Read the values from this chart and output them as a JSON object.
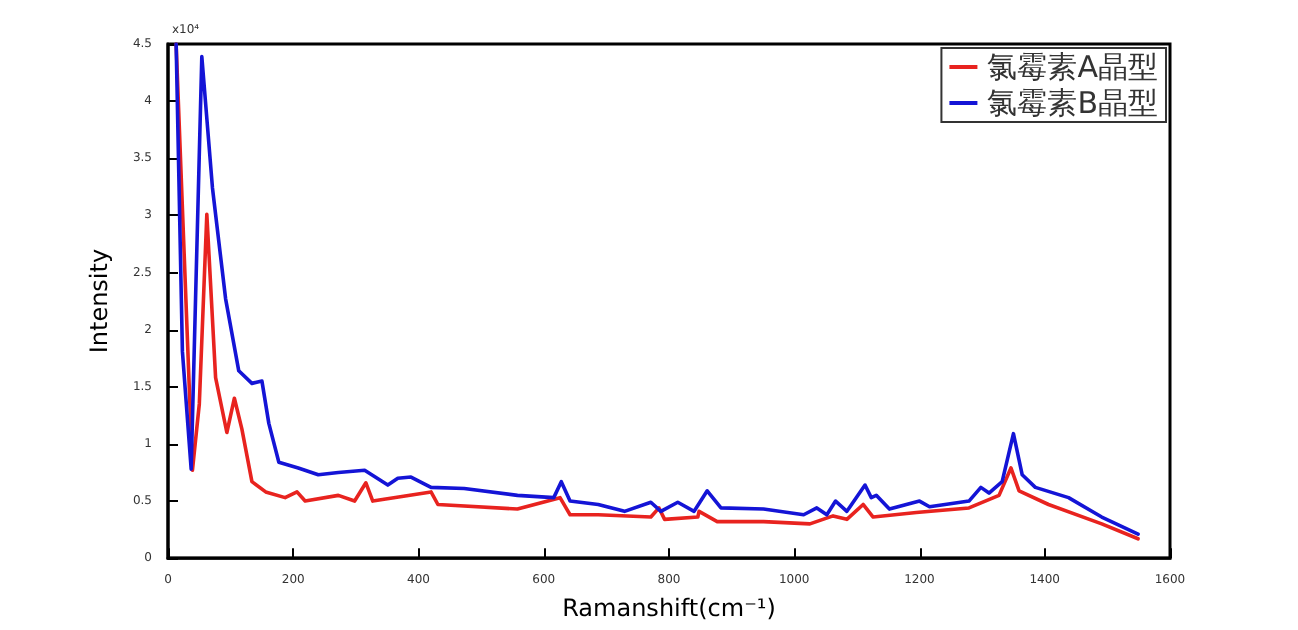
{
  "chart_data": {
    "type": "line",
    "xlabel": "Ramanshift(cm⁻¹)",
    "ylabel": "Intensity",
    "annotations": [
      "x10⁴"
    ],
    "xlim": [
      0,
      1600
    ],
    "xticks": [
      0,
      200,
      400,
      600,
      800,
      1000,
      1200,
      1400,
      1600
    ],
    "ylim": [
      0,
      4.5
    ],
    "yticks": [
      0,
      0.5,
      1,
      1.5,
      2,
      2.5,
      3,
      3.5,
      4,
      4.5
    ],
    "grid": false,
    "legend": "top right",
    "marker": "none",
    "line_style": "solid",
    "series": [
      {
        "name": "氯霉素A晶型",
        "color": "#e8231f",
        "x": [
          13,
          39,
          50,
          62,
          76,
          94,
          106,
          118,
          134,
          156,
          187,
          206,
          219,
          272,
          298,
          316,
          327,
          420,
          431,
          558,
          626,
          642,
          687,
          771,
          784,
          793,
          846,
          848,
          877,
          951,
          1025,
          1062,
          1084,
          1110,
          1126,
          1195,
          1279,
          1327,
          1346,
          1359,
          1406,
          1491,
          1549
        ],
        "values": [
          4.5,
          0.77,
          1.35,
          3.01,
          1.58,
          1.1,
          1.4,
          1.13,
          0.67,
          0.58,
          0.53,
          0.58,
          0.5,
          0.55,
          0.5,
          0.66,
          0.5,
          0.58,
          0.47,
          0.43,
          0.53,
          0.38,
          0.38,
          0.36,
          0.44,
          0.34,
          0.36,
          0.41,
          0.32,
          0.32,
          0.3,
          0.37,
          0.34,
          0.47,
          0.36,
          0.4,
          0.44,
          0.55,
          0.79,
          0.59,
          0.47,
          0.3,
          0.17
        ]
      },
      {
        "name": "氯霉素B晶型",
        "color": "#1414d6",
        "x": [
          13,
          23,
          37,
          44,
          54,
          71,
          92,
          113,
          134,
          150,
          161,
          177,
          208,
          240,
          272,
          314,
          351,
          367,
          388,
          420,
          473,
          558,
          616,
          628,
          642,
          687,
          729,
          771,
          787,
          814,
          840,
          861,
          883,
          951,
          1015,
          1036,
          1052,
          1066,
          1084,
          1113,
          1123,
          1131,
          1152,
          1200,
          1216,
          1279,
          1298,
          1311,
          1332,
          1350,
          1364,
          1385,
          1438,
          1491,
          1549
        ],
        "values": [
          4.5,
          1.81,
          0.78,
          2.27,
          4.39,
          3.24,
          2.27,
          1.64,
          1.53,
          1.55,
          1.18,
          0.84,
          0.79,
          0.73,
          0.75,
          0.77,
          0.64,
          0.7,
          0.71,
          0.62,
          0.61,
          0.55,
          0.53,
          0.67,
          0.5,
          0.47,
          0.41,
          0.49,
          0.41,
          0.49,
          0.41,
          0.59,
          0.44,
          0.43,
          0.38,
          0.44,
          0.38,
          0.5,
          0.41,
          0.64,
          0.53,
          0.55,
          0.43,
          0.5,
          0.45,
          0.5,
          0.62,
          0.57,
          0.67,
          1.09,
          0.73,
          0.62,
          0.53,
          0.36,
          0.21
        ]
      }
    ]
  }
}
